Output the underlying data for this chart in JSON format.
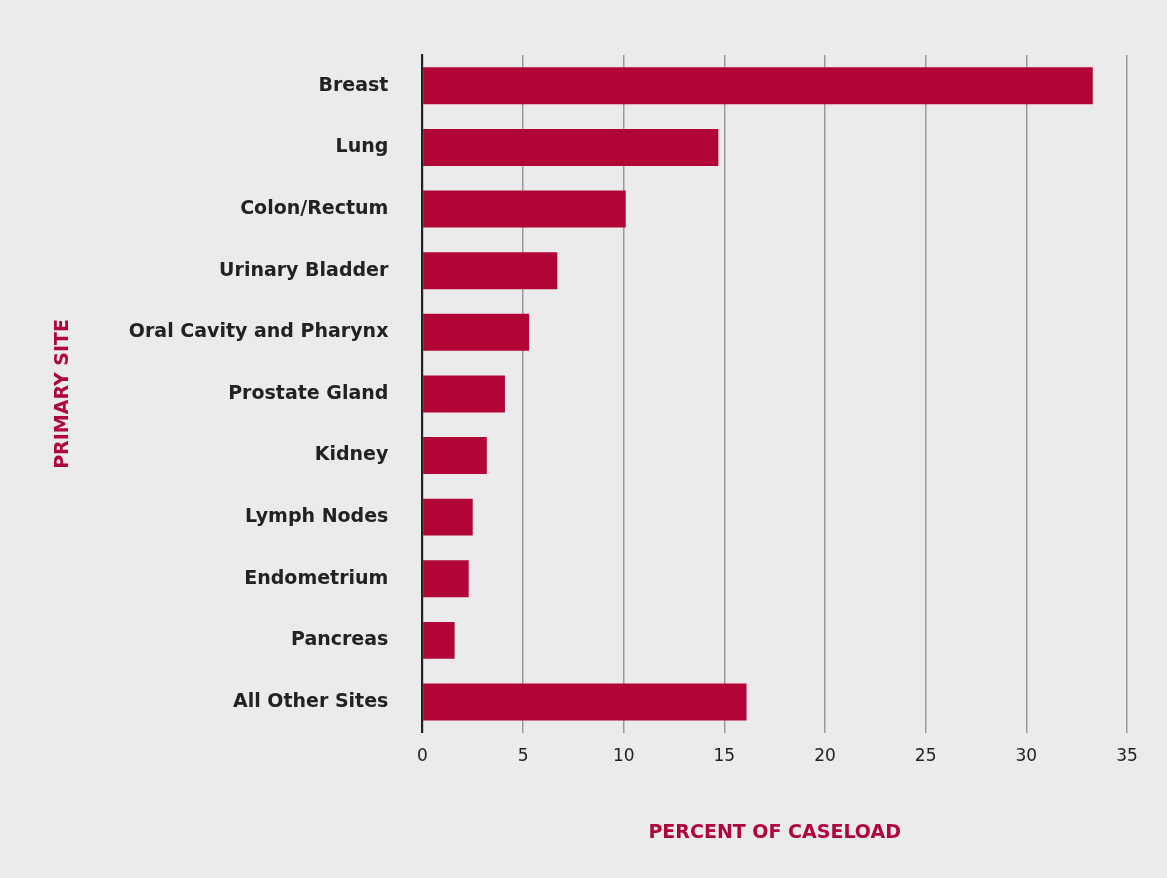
{
  "chart_data": {
    "type": "bar",
    "orientation": "horizontal",
    "xlabel": "PERCENT OF CASELOAD",
    "ylabel": "PRIMARY SITE",
    "categories": [
      "Breast",
      "Lung",
      "Colon/Rectum",
      "Urinary Bladder",
      "Oral Cavity and Pharynx",
      "Prostate Gland",
      "Kidney",
      "Lymph Nodes",
      "Endometrium",
      "Pancreas",
      "All Other Sites"
    ],
    "values": [
      33.3,
      14.7,
      10.1,
      6.7,
      5.3,
      4.1,
      3.2,
      2.5,
      2.3,
      1.6,
      16.1
    ],
    "color": "#b10535",
    "xlim": [
      0,
      35
    ],
    "xticks": [
      0,
      5,
      10,
      15,
      20,
      25,
      30,
      35
    ],
    "grid": "x",
    "legend": false
  }
}
